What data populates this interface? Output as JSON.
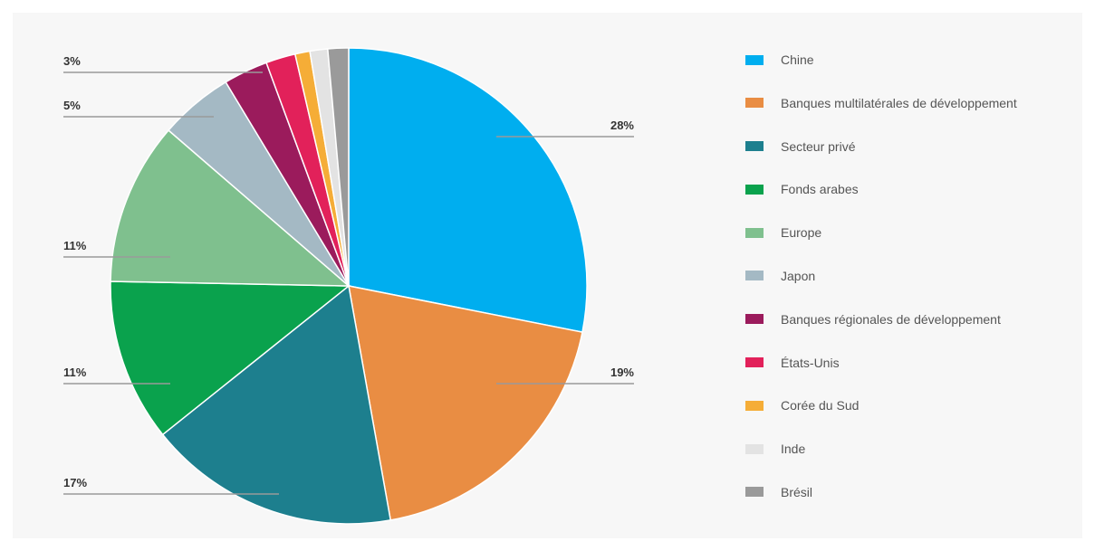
{
  "chart_data": {
    "type": "pie",
    "start_angle": "12 o'clock",
    "direction": "clockwise",
    "legend_position": "right",
    "slices": [
      {
        "name": "Chine",
        "value": 28,
        "label": "28%",
        "color": "#00aeef"
      },
      {
        "name": "Banques multilatérales de développement",
        "value": 19,
        "label": "19%",
        "color": "#e98d43"
      },
      {
        "name": "Secteur privé",
        "value": 17,
        "label": "17%",
        "color": "#1d7f8e"
      },
      {
        "name": "Fonds arabes",
        "value": 11,
        "label": "11%",
        "color": "#0aa24d"
      },
      {
        "name": "Europe",
        "value": 11,
        "label": "11%",
        "color": "#7fc08e"
      },
      {
        "name": "Japon",
        "value": 5,
        "label": "5%",
        "color": "#a4b9c4"
      },
      {
        "name": "Banques régionales de développement",
        "value": 3,
        "label": "3%",
        "color": "#9b1b5c"
      },
      {
        "name": "États-Unis",
        "value": 2,
        "label": "",
        "color": "#e2215a"
      },
      {
        "name": "Corée du Sud",
        "value": 1,
        "label": "",
        "color": "#f5ad37"
      },
      {
        "name": "Inde",
        "value": 1.2,
        "label": "",
        "color": "#e3e3e3"
      },
      {
        "name": "Brésil",
        "value": 1.4,
        "label": "",
        "color": "#9a9a9a"
      }
    ]
  }
}
